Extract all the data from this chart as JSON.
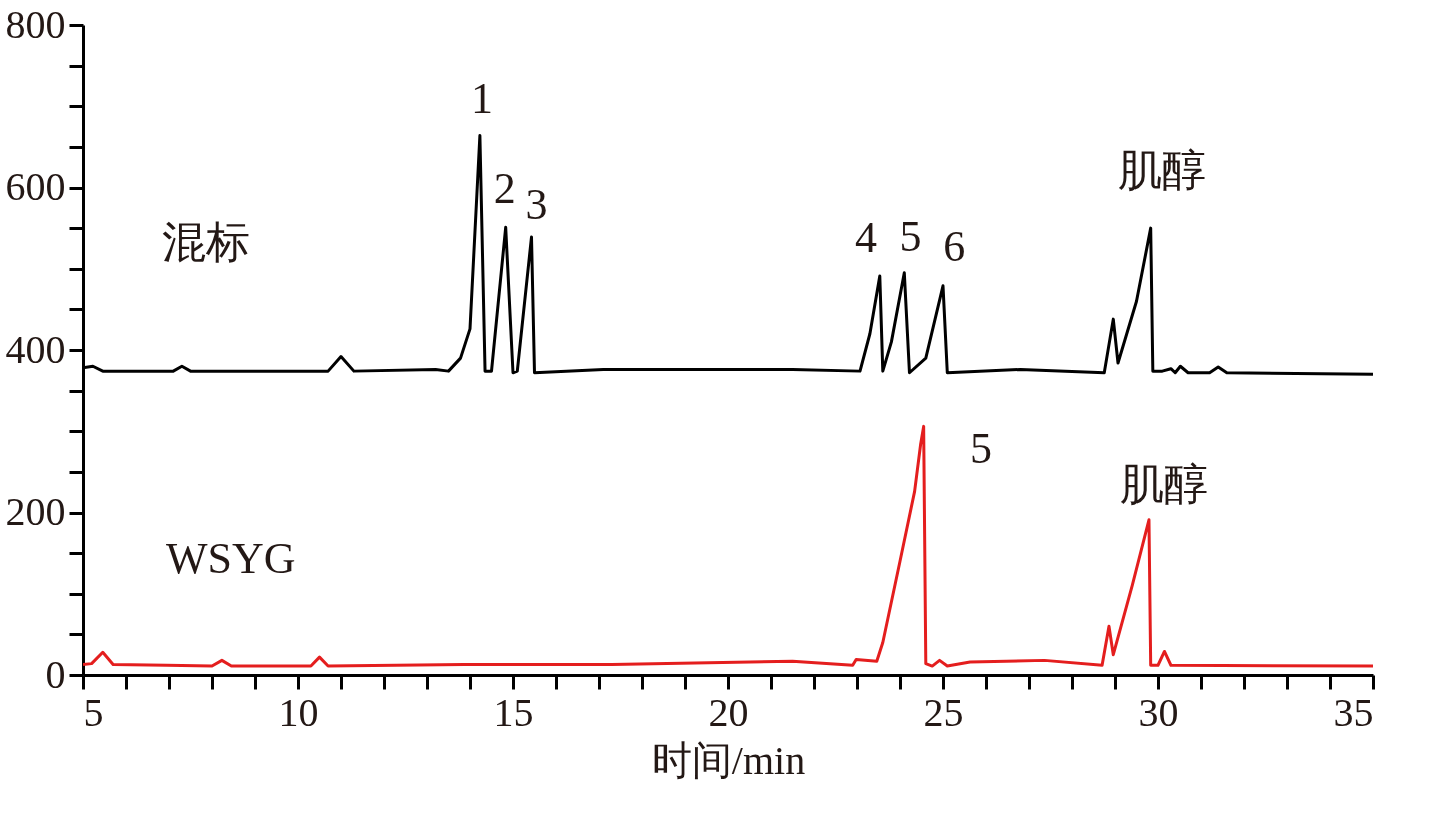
{
  "chart_data": {
    "type": "line",
    "xlabel": "时间/min",
    "xlim": [
      5,
      35
    ],
    "ylim": [
      0,
      800
    ],
    "xticks": [
      5,
      {
        "value": 6,
        "label": null
      },
      {
        "value": 7,
        "label": null
      },
      {
        "value": 8,
        "label": null
      },
      {
        "value": 9,
        "label": null
      },
      10,
      {
        "value": 11,
        "label": null
      },
      {
        "value": 12,
        "label": null
      },
      {
        "value": 13,
        "label": null
      },
      {
        "value": 14,
        "label": null
      },
      15,
      {
        "value": 16,
        "label": null
      },
      {
        "value": 17,
        "label": null
      },
      {
        "value": 18,
        "label": null
      },
      {
        "value": 19,
        "label": null
      },
      20,
      {
        "value": 21,
        "label": null
      },
      {
        "value": 22,
        "label": null
      },
      {
        "value": 23,
        "label": null
      },
      {
        "value": 24,
        "label": null
      },
      25,
      {
        "value": 26,
        "label": null
      },
      {
        "value": 27,
        "label": null
      },
      {
        "value": 28,
        "label": null
      },
      {
        "value": 29,
        "label": null
      },
      30,
      {
        "value": 31,
        "label": null
      },
      {
        "value": 32,
        "label": null
      },
      {
        "value": 33,
        "label": null
      },
      {
        "value": 34,
        "label": null
      },
      35
    ],
    "yticks": [
      0,
      {
        "value": 50,
        "label": null
      },
      {
        "value": 100,
        "label": null
      },
      {
        "value": 150,
        "label": null
      },
      200,
      {
        "value": 250,
        "label": null
      },
      {
        "value": 300,
        "label": null
      },
      {
        "value": 350,
        "label": null
      },
      400,
      {
        "value": 450,
        "label": null
      },
      {
        "value": 500,
        "label": null
      },
      {
        "value": 550,
        "label": null
      },
      600,
      {
        "value": 650,
        "label": null
      },
      {
        "value": 700,
        "label": null
      },
      {
        "value": 750,
        "label": null
      },
      800
    ],
    "grid": false,
    "legend": false,
    "marker": "none",
    "line_style": "solid",
    "series": [
      {
        "name": "混标",
        "color": "#000000",
        "x": [
          5,
          5.23,
          5.46,
          6.5,
          7.1,
          7.3,
          7.5,
          9,
          10.7,
          11.0,
          11.3,
          13.2,
          13.5,
          13.78,
          14.0,
          14.23,
          14.35,
          14.5,
          14.83,
          15.0,
          15.1,
          15.43,
          15.5,
          17.1,
          18.0,
          21.5,
          23.07,
          23.3,
          23.53,
          23.6,
          23.8,
          24.1,
          24.22,
          24.6,
          25.0,
          25.1,
          26.8,
          28.75,
          28.96,
          29.07,
          29.5,
          29.83,
          29.88,
          30.1,
          30.3,
          30.4,
          30.52,
          30.7,
          31.2,
          31.4,
          31.6,
          35
        ],
        "values": [
          378,
          380,
          374,
          374,
          374,
          380,
          374,
          374,
          374,
          392,
          374,
          376,
          374,
          390,
          426,
          664,
          374,
          374,
          551,
          372,
          374,
          539,
          372,
          376,
          376,
          376,
          374,
          420,
          491,
          374,
          410,
          495,
          372,
          390,
          479,
          372,
          376,
          372,
          438,
          384,
          460,
          550,
          374,
          374,
          377,
          372,
          380,
          372,
          372,
          379,
          372,
          370
        ]
      },
      {
        "name": "WSYG",
        "color": "#e41e1e",
        "x": [
          5,
          5.2,
          5.46,
          5.7,
          6.94,
          8.0,
          8.23,
          8.45,
          9.2,
          10.3,
          10.5,
          10.7,
          13.86,
          17.3,
          21.5,
          22.9,
          22.98,
          23.46,
          23.6,
          24.0,
          24.34,
          24.48,
          24.55,
          24.6,
          24.75,
          24.92,
          25.1,
          25.63,
          27.36,
          28.7,
          28.86,
          28.96,
          29.4,
          29.79,
          29.83,
          30.0,
          30.15,
          30.3,
          35
        ],
        "values": [
          13,
          14,
          28,
          13,
          12,
          11,
          18,
          11,
          11,
          11,
          22,
          11,
          13,
          13,
          17,
          12,
          19,
          17,
          40,
          140,
          226,
          284,
          306,
          14,
          11,
          18,
          11,
          16,
          18,
          12,
          60,
          25,
          110,
          191,
          12,
          12,
          29,
          12,
          11
        ]
      }
    ],
    "annotations": [
      "1",
      "2",
      "3",
      "4",
      "5",
      "6",
      "肌醇",
      "5",
      "肌醇"
    ]
  }
}
